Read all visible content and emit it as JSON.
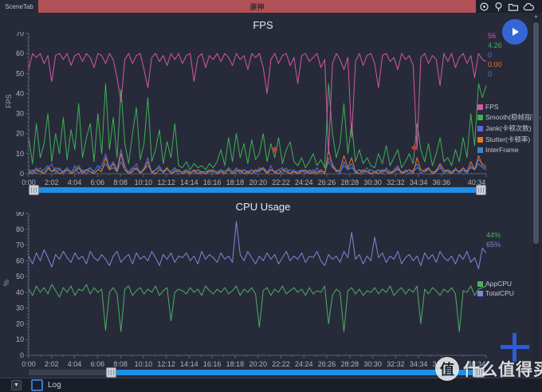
{
  "window": {
    "scene_tab_label": "SceneTab",
    "scene_title": "原神",
    "top_icons": [
      "target-icon",
      "pin-icon",
      "folder-icon",
      "cloud-icon"
    ]
  },
  "colors": {
    "fps": "#d556a8",
    "smooth": "#3fae57",
    "jank": "#6066d6",
    "stutter": "#e2762e",
    "interframe": "#3c85cc",
    "appcpu": "#4caf64",
    "totalcpu": "#8186dd",
    "accent_blue": "#1f8fe8",
    "marker_red": "#c23b3b"
  },
  "charts": [
    {
      "title": "FPS",
      "unit_label": "FPS",
      "values": [
        {
          "text": "56",
          "color": "#d556a8"
        },
        {
          "text": "4.26",
          "color": "#3fae57"
        },
        {
          "text": "0",
          "color": "#6066d6"
        },
        {
          "text": "0.00",
          "color": "#e2762e"
        },
        {
          "text": "0",
          "color": "#3c85cc"
        }
      ],
      "legend": [
        {
          "label": "FPS",
          "color": "#d556a8"
        },
        {
          "label": "Smooth(稳帧指数)",
          "color": "#3fae57"
        },
        {
          "label": "Jank(卡顿次数)",
          "color": "#6066d6"
        },
        {
          "label": "Stutter(卡顿率)",
          "color": "#e2762e"
        },
        {
          "label": "InterFrame",
          "color": "#3c85cc"
        }
      ],
      "slider": {
        "start": 0,
        "end": 1
      }
    },
    {
      "title": "CPU Usage",
      "unit_label": "%",
      "values": [
        {
          "text": "44%",
          "color": "#4caf64"
        },
        {
          "text": "65%",
          "color": "#8186dd"
        }
      ],
      "legend": [
        {
          "label": "AppCPU",
          "color": "#4caf64"
        },
        {
          "label": "TotalCPU",
          "color": "#8186dd"
        }
      ],
      "slider": {
        "start": 0.18,
        "end": 0.985
      }
    }
  ],
  "chart_data": [
    {
      "type": "line",
      "title": "FPS",
      "ylabel": "FPS",
      "ylim": [
        0,
        70
      ],
      "y_tick_step": 10,
      "y_minor_step": 2,
      "grid": false,
      "legend_position": "right",
      "x_ticks": [
        {
          "label": "0:00",
          "f": 0.0
        },
        {
          "label": "2:02",
          "f": 0.0501
        },
        {
          "label": "4:04",
          "f": 0.1003
        },
        {
          "label": "6:06",
          "f": 0.1504
        },
        {
          "label": "8:08",
          "f": 0.2005
        },
        {
          "label": "10:10",
          "f": 0.2506
        },
        {
          "label": "12:12",
          "f": 0.3008
        },
        {
          "label": "14:14",
          "f": 0.3509
        },
        {
          "label": "16:16",
          "f": 0.401
        },
        {
          "label": "18:18",
          "f": 0.4511
        },
        {
          "label": "20:20",
          "f": 0.5013
        },
        {
          "label": "22:22",
          "f": 0.5514
        },
        {
          "label": "24:24",
          "f": 0.6015
        },
        {
          "label": "26:26",
          "f": 0.6516
        },
        {
          "label": "28:28",
          "f": 0.7018
        },
        {
          "label": "30:30",
          "f": 0.7519
        },
        {
          "label": "32:32",
          "f": 0.802
        },
        {
          "label": "34:34",
          "f": 0.8521
        },
        {
          "label": "36:36",
          "f": 0.9023
        },
        {
          "label": "40:34",
          "f": 1.0
        }
      ],
      "series": [
        {
          "name": "Jank",
          "color": "#6066d6",
          "values": [
            0,
            2,
            0,
            3,
            0,
            2,
            5,
            0,
            3,
            0,
            2,
            0,
            4,
            0,
            2,
            0,
            3,
            0,
            2,
            4,
            10,
            3,
            6,
            2,
            12,
            4,
            0,
            2,
            5,
            0,
            3,
            8,
            0,
            2,
            4,
            0,
            3,
            0,
            2,
            0,
            0,
            2,
            0,
            0,
            2,
            0,
            0,
            2,
            0,
            0,
            2,
            0,
            2,
            0,
            3,
            0,
            2,
            0,
            2,
            0,
            3,
            2,
            0,
            4,
            0,
            2,
            0,
            3,
            0,
            2,
            0,
            2,
            0,
            2,
            0,
            3,
            0,
            0,
            8,
            5,
            2,
            0,
            6,
            2,
            5,
            0,
            2,
            0,
            3,
            0,
            0,
            2,
            0,
            3,
            0,
            2,
            4,
            0,
            2,
            0,
            2,
            5,
            0,
            2,
            3,
            0,
            2,
            4,
            0,
            2,
            0,
            3,
            0,
            2,
            0,
            4,
            2,
            7,
            5,
            4
          ]
        },
        {
          "name": "InterFrame",
          "color": "#3c85cc",
          "values": [
            2,
            1,
            3,
            1,
            2,
            4,
            1,
            3,
            2,
            1,
            3,
            1,
            2,
            4,
            1,
            2,
            3,
            1,
            4,
            2,
            5,
            2,
            3,
            1,
            6,
            2,
            1,
            3,
            2,
            1,
            2,
            4,
            1,
            2,
            3,
            1,
            2,
            1,
            3,
            1,
            1,
            2,
            1,
            1,
            2,
            1,
            1,
            2,
            1,
            1,
            2,
            1,
            3,
            1,
            2,
            1,
            2,
            1,
            2,
            1,
            2,
            3,
            1,
            2,
            1,
            2,
            3,
            1,
            2,
            1,
            1,
            2,
            1,
            1,
            2,
            1,
            1,
            1,
            6,
            3,
            2,
            1,
            4,
            2,
            3,
            1,
            2,
            1,
            1,
            2,
            1,
            2,
            1,
            2,
            1,
            1,
            2,
            1,
            1,
            2,
            1,
            3,
            2,
            1,
            2,
            1,
            1,
            3,
            1,
            2,
            1,
            2,
            1,
            2,
            1,
            3,
            2,
            5,
            3,
            2
          ]
        },
        {
          "name": "Stutter",
          "color": "#e2762e",
          "values": [
            1,
            0,
            2,
            1,
            0,
            3,
            1,
            2,
            0,
            1,
            2,
            0,
            1,
            3,
            0,
            2,
            1,
            0,
            2,
            1,
            8,
            2,
            5,
            1,
            10,
            2,
            0,
            1,
            3,
            0,
            2,
            6,
            1,
            0,
            2,
            1,
            3,
            0,
            1,
            2,
            0,
            1,
            0,
            2,
            0,
            1,
            0,
            1,
            2,
            0,
            1,
            0,
            2,
            0,
            1,
            2,
            0,
            1,
            0,
            2,
            1,
            3,
            0,
            2,
            1,
            0,
            2,
            1,
            0,
            1,
            0,
            1,
            2,
            0,
            1,
            0,
            2,
            0,
            12,
            4,
            1,
            2,
            9,
            3,
            8,
            1,
            0,
            2,
            1,
            0,
            1,
            0,
            2,
            1,
            0,
            1,
            3,
            0,
            1,
            2,
            0,
            8,
            2,
            1,
            3,
            0,
            1,
            5,
            2,
            1,
            0,
            2,
            1,
            3,
            1,
            6,
            2,
            9,
            4,
            3
          ]
        },
        {
          "name": "Smooth",
          "color": "#3fae57",
          "values": [
            18,
            5,
            25,
            8,
            15,
            30,
            6,
            20,
            10,
            28,
            7,
            22,
            12,
            35,
            8,
            18,
            25,
            6,
            30,
            10,
            45,
            12,
            28,
            8,
            42,
            15,
            5,
            20,
            33,
            7,
            15,
            38,
            6,
            12,
            22,
            5,
            16,
            8,
            25,
            4,
            3,
            6,
            2,
            5,
            3,
            4,
            2,
            5,
            3,
            6,
            12,
            4,
            18,
            6,
            20,
            8,
            15,
            5,
            17,
            7,
            10,
            20,
            6,
            15,
            8,
            18,
            5,
            12,
            16,
            6,
            4,
            8,
            3,
            6,
            10,
            4,
            7,
            3,
            45,
            20,
            8,
            15,
            35,
            10,
            25,
            6,
            12,
            5,
            8,
            4,
            3,
            10,
            5,
            14,
            4,
            8,
            12,
            3,
            6,
            10,
            5,
            25,
            12,
            6,
            15,
            4,
            10,
            18,
            6,
            8,
            4,
            12,
            6,
            18,
            8,
            30,
            14,
            45,
            38,
            44
          ]
        },
        {
          "name": "FPS",
          "color": "#d556a8",
          "values": [
            52,
            60,
            58,
            60,
            55,
            59,
            46,
            59,
            60,
            57,
            60,
            54,
            59,
            60,
            56,
            60,
            58,
            53,
            60,
            59,
            55,
            60,
            57,
            48,
            36,
            57,
            60,
            55,
            59,
            60,
            52,
            43,
            58,
            60,
            56,
            59,
            54,
            60,
            57,
            60,
            55,
            59,
            60,
            46,
            58,
            60,
            53,
            59,
            57,
            60,
            56,
            60,
            58,
            54,
            60,
            57,
            59,
            52,
            60,
            58,
            60,
            53,
            40,
            57,
            60,
            55,
            59,
            60,
            54,
            58,
            45,
            59,
            60,
            56,
            58,
            60,
            53,
            57,
            10,
            55,
            60,
            57,
            52,
            58,
            18,
            56,
            60,
            54,
            59,
            60,
            55,
            43,
            59,
            60,
            56,
            58,
            52,
            60,
            57,
            59,
            54,
            12,
            58,
            60,
            55,
            59,
            57,
            44,
            60,
            56,
            60,
            53,
            58,
            60,
            55,
            59,
            48,
            60,
            57,
            56
          ]
        }
      ],
      "markers": [
        {
          "x": 0.538,
          "v": 12,
          "color": "#c23b3b"
        },
        {
          "x": 0.843,
          "v": 13,
          "color": "#c23b3b"
        }
      ]
    },
    {
      "type": "line",
      "title": "CPU Usage",
      "ylabel": "%",
      "ylim": [
        0,
        90
      ],
      "y_tick_step": 10,
      "y_minor_step": 2,
      "grid": false,
      "legend_position": "right",
      "x_ticks": [
        {
          "label": "0:00",
          "f": 0.0
        },
        {
          "label": "2:02",
          "f": 0.0501
        },
        {
          "label": "4:04",
          "f": 0.1003
        },
        {
          "label": "6:06",
          "f": 0.1504
        },
        {
          "label": "8:08",
          "f": 0.2005
        },
        {
          "label": "10:10",
          "f": 0.2506
        },
        {
          "label": "12:12",
          "f": 0.3008
        },
        {
          "label": "14:14",
          "f": 0.3509
        },
        {
          "label": "16:16",
          "f": 0.401
        },
        {
          "label": "18:18",
          "f": 0.4511
        },
        {
          "label": "20:20",
          "f": 0.5013
        },
        {
          "label": "22:22",
          "f": 0.5514
        },
        {
          "label": "24:24",
          "f": 0.6015
        },
        {
          "label": "26:26",
          "f": 0.6516
        },
        {
          "label": "28:28",
          "f": 0.7018
        },
        {
          "label": "30:30",
          "f": 0.7519
        },
        {
          "label": "32:32",
          "f": 0.802
        },
        {
          "label": "34:34",
          "f": 0.8521
        },
        {
          "label": "36:36",
          "f": 0.9023
        },
        {
          "label": "40:34",
          "f": 1.0
        }
      ],
      "series": [
        {
          "name": "TotalCPU",
          "color": "#8186dd",
          "values": [
            63,
            58,
            65,
            60,
            67,
            62,
            56,
            64,
            61,
            66,
            62,
            59,
            65,
            61,
            63,
            58,
            66,
            62,
            60,
            64,
            61,
            57,
            63,
            66,
            59,
            62,
            64,
            58,
            65,
            61,
            63,
            60,
            66,
            62,
            57,
            64,
            61,
            65,
            59,
            63,
            62,
            65,
            60,
            63,
            58,
            66,
            61,
            64,
            62,
            59,
            65,
            61,
            63,
            59,
            85,
            64,
            60,
            66,
            62,
            58,
            63,
            60,
            65,
            61,
            64,
            58,
            62,
            66,
            60,
            63,
            61,
            65,
            59,
            63,
            62,
            66,
            60,
            57,
            64,
            61,
            63,
            59,
            66,
            62,
            78,
            61,
            64,
            58,
            63,
            60,
            75,
            62,
            65,
            59,
            63,
            61,
            66,
            58,
            62,
            64,
            60,
            63,
            57,
            65,
            61,
            64,
            59,
            66,
            62,
            60,
            63,
            58,
            64,
            61,
            66,
            59,
            62,
            55,
            68,
            65
          ]
        },
        {
          "name": "AppCPU",
          "color": "#4caf64",
          "values": [
            42,
            38,
            44,
            40,
            43,
            39,
            45,
            41,
            37,
            43,
            40,
            44,
            38,
            42,
            41,
            45,
            39,
            43,
            40,
            42,
            16,
            40,
            43,
            39,
            15,
            42,
            44,
            38,
            41,
            43,
            39,
            42,
            40,
            44,
            38,
            41,
            43,
            22,
            40,
            42,
            41,
            39,
            43,
            40,
            42,
            38,
            44,
            41,
            39,
            42,
            40,
            43,
            39,
            41,
            44,
            38,
            42,
            40,
            43,
            39,
            18,
            41,
            43,
            38,
            42,
            40,
            44,
            39,
            41,
            43,
            40,
            42,
            38,
            43,
            39,
            41,
            40,
            44,
            20,
            38,
            42,
            40,
            15,
            41,
            43,
            39,
            42,
            38,
            41,
            40,
            43,
            39,
            42,
            40,
            44,
            38,
            41,
            43,
            39,
            42,
            40,
            44,
            20,
            42,
            39,
            43,
            41,
            38,
            42,
            40,
            43,
            39,
            15,
            41,
            40,
            44,
            38,
            42,
            43,
            44
          ]
        }
      ],
      "markers": []
    }
  ],
  "bottom_bar": {
    "collapse_glyph": "▼",
    "log_label": "Log",
    "log_checked": false
  },
  "watermark": {
    "logo_char": "值",
    "text": "什么值得买"
  }
}
